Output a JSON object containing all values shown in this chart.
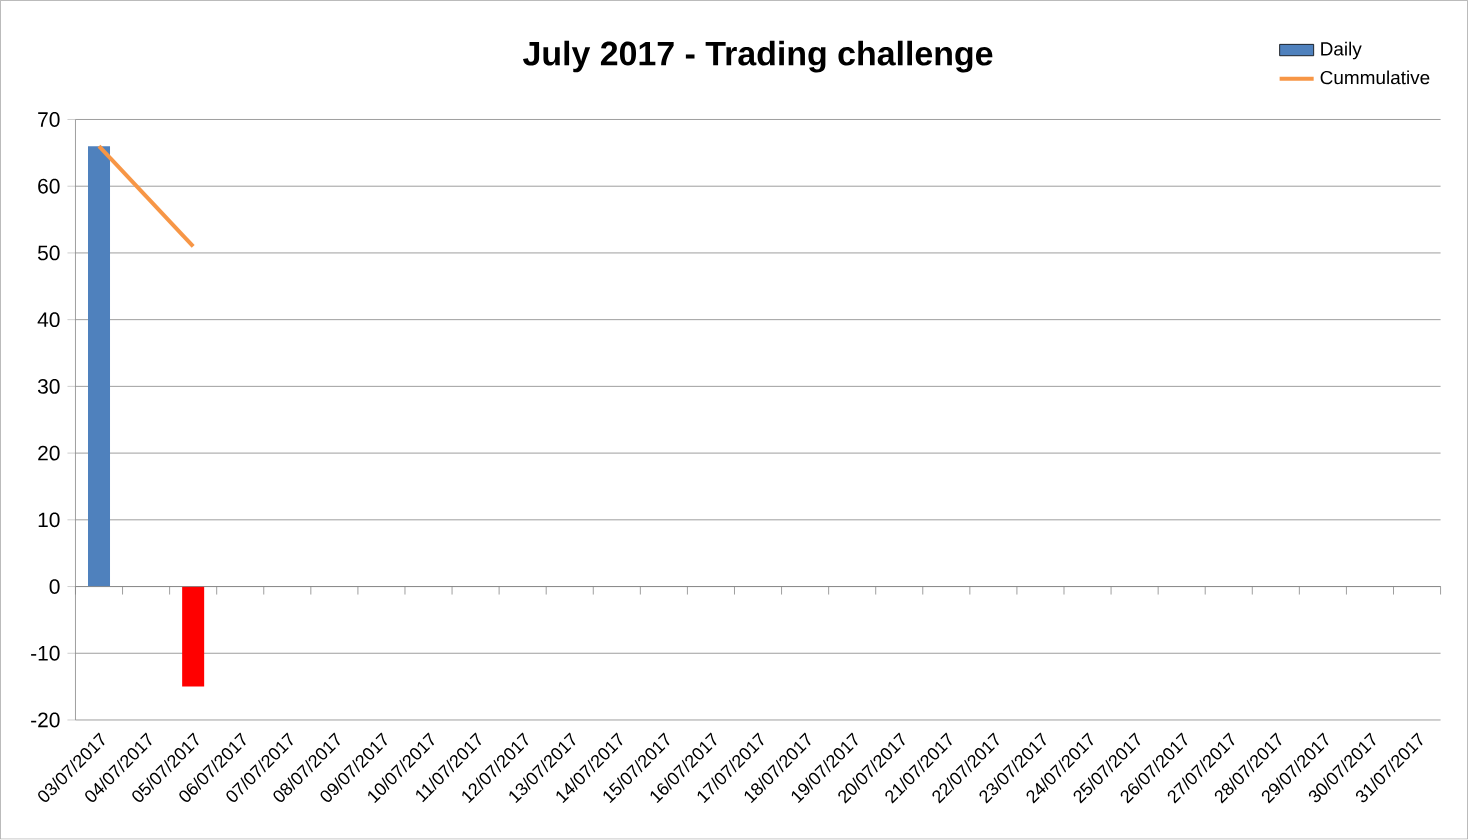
{
  "chart_data": {
    "type": "bar",
    "title": "July 2017 - Trading challenge",
    "categories": [
      "03/07/2017",
      "04/07/2017",
      "05/07/2017",
      "06/07/2017",
      "07/07/2017",
      "08/07/2017",
      "09/07/2017",
      "10/07/2017",
      "11/07/2017",
      "12/07/2017",
      "13/07/2017",
      "14/07/2017",
      "15/07/2017",
      "16/07/2017",
      "17/07/2017",
      "18/07/2017",
      "19/07/2017",
      "20/07/2017",
      "21/07/2017",
      "22/07/2017",
      "23/07/2017",
      "24/07/2017",
      "25/07/2017",
      "26/07/2017",
      "27/07/2017",
      "28/07/2017",
      "29/07/2017",
      "30/07/2017",
      "31/07/2017"
    ],
    "series": [
      {
        "name": "Daily",
        "color": "#4f81bd",
        "colors": [
          "#4f81bd",
          null,
          "#ff0000",
          null,
          null,
          null,
          null,
          null,
          null,
          null,
          null,
          null,
          null,
          null,
          null,
          null,
          null,
          null,
          null,
          null,
          null,
          null,
          null,
          null,
          null,
          null,
          null,
          null,
          null
        ],
        "values": [
          66,
          null,
          -15,
          null,
          null,
          null,
          null,
          null,
          null,
          null,
          null,
          null,
          null,
          null,
          null,
          null,
          null,
          null,
          null,
          null,
          null,
          null,
          null,
          null,
          null,
          null,
          null,
          null,
          null
        ]
      },
      {
        "name": "Cummulative",
        "type": "line",
        "color": "#f79646",
        "values": [
          66,
          null,
          51,
          null,
          null,
          null,
          null,
          null,
          null,
          null,
          null,
          null,
          null,
          null,
          null,
          null,
          null,
          null,
          null,
          null,
          null,
          null,
          null,
          null,
          null,
          null,
          null,
          null,
          null
        ]
      }
    ],
    "ylim": [
      -20,
      70
    ],
    "yticks": [
      -20,
      -10,
      0,
      10,
      20,
      30,
      40,
      50,
      60,
      70
    ],
    "grid": "y",
    "legend": "top right"
  }
}
